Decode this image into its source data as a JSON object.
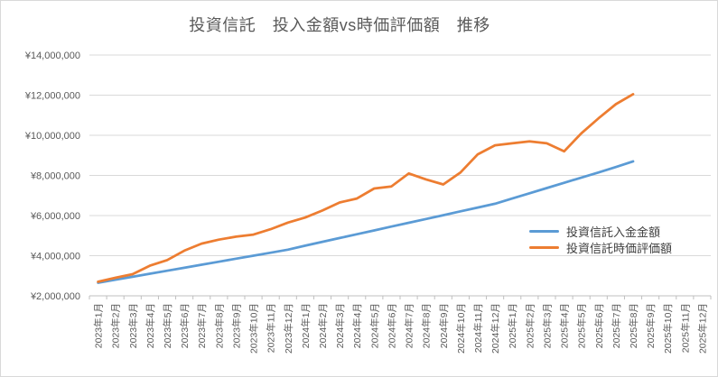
{
  "chart_data": {
    "type": "line",
    "title": "投資信託　投入金額vs時価評価額　推移",
    "categories": [
      "2023年1月",
      "2023年2月",
      "2023年3月",
      "2023年4月",
      "2023年5月",
      "2023年6月",
      "2023年7月",
      "2023年8月",
      "2023年9月",
      "2023年10月",
      "2023年11月",
      "2023年12月",
      "2024年1月",
      "2024年2月",
      "2024年3月",
      "2024年4月",
      "2024年5月",
      "2024年6月",
      "2024年7月",
      "2024年8月",
      "2024年9月",
      "2024年10月",
      "2024年11月",
      "2024年12月",
      "2025年1月",
      "2025年2月",
      "2025年3月",
      "2025年4月",
      "2025年5月",
      "2025年6月",
      "2025年7月",
      "2025年8月",
      "2025年9月",
      "2025年10月",
      "2025年11月",
      "2025年12月"
    ],
    "series": [
      {
        "key": "deposit-total",
        "name": "投資信託入金金額",
        "color": "#5B9BD5",
        "values": [
          2650000,
          2800000,
          2950000,
          3100000,
          3250000,
          3400000,
          3550000,
          3700000,
          3850000,
          4000000,
          4150000,
          4300000,
          4500000,
          4690000,
          4880000,
          5070000,
          5260000,
          5450000,
          5640000,
          5830000,
          6020000,
          6210000,
          6400000,
          6590000,
          6850000,
          7110000,
          7370000,
          7630000,
          7890000,
          8150000,
          8420000,
          8700000
        ]
      },
      {
        "key": "market-value",
        "name": "投資信託時価評価額",
        "color": "#ED7D31",
        "values": [
          2700000,
          2900000,
          3080000,
          3500000,
          3780000,
          4250000,
          4600000,
          4800000,
          4950000,
          5050000,
          5320000,
          5650000,
          5900000,
          6250000,
          6650000,
          6850000,
          7350000,
          7450000,
          8100000,
          7800000,
          7550000,
          8150000,
          9050000,
          9500000,
          9600000,
          9700000,
          9600000,
          9200000,
          10100000,
          10850000,
          11550000,
          12050000
        ]
      }
    ],
    "y_axis": {
      "min": 2000000,
      "max": 14000000,
      "step": 2000000,
      "tick_labels": [
        "¥2,000,000",
        "¥4,000,000",
        "¥6,000,000",
        "¥8,000,000",
        "¥10,000,000",
        "¥12,000,000",
        "¥14,000,000"
      ]
    },
    "x_axis": {
      "label_rotation": -90
    },
    "legend": {
      "position": "right-middle",
      "entries": [
        "投資信託入金金額",
        "投資信託時価評価額"
      ]
    },
    "grid": true
  },
  "style": {
    "title_color": "#595959",
    "axis_text_color": "#595959",
    "legend_text_color": "#404040",
    "gridline_color": "#D9D9D9",
    "axis_line_color": "#BFBFBF",
    "background": "#FFFFFF"
  }
}
